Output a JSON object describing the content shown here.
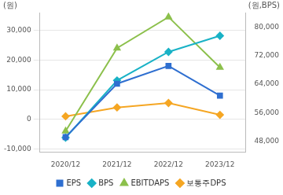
{
  "chart_data": {
    "type": "line",
    "y_label": "(원)",
    "y2_label": "(원,BPS)",
    "categories": [
      "2020/12",
      "2021/12",
      "2022/12",
      "2023/12"
    ],
    "series": [
      {
        "name": "EPS",
        "color": "#2f6fd0",
        "marker": "square",
        "values": [
          -6000,
          12000,
          18000,
          8000
        ]
      },
      {
        "name": "BPS",
        "color": "#19b2c6",
        "marker": "diamond",
        "axis": "y2",
        "values": [
          49000,
          65000,
          73000,
          77500
        ]
      },
      {
        "name": "EBITDAPS",
        "color": "#8cc04c",
        "marker": "triangle",
        "values": [
          -4000,
          24000,
          34500,
          17500
        ]
      },
      {
        "name": "보통주DPS",
        "color": "#f5a623",
        "marker": "diamond",
        "values": [
          1000,
          4000,
          5500,
          1500
        ]
      }
    ],
    "ylim": [
      -11000,
      36000
    ],
    "yticks": [
      {
        "value": -10000,
        "label": "-10,000"
      },
      0,
      {
        "value": 10000,
        "label": "10,000"
      },
      {
        "value": 20000,
        "label": "20,000"
      },
      {
        "value": 30000,
        "label": "30,000"
      }
    ],
    "y2lim": [
      45000,
      84000
    ],
    "y2ticks": [
      {
        "value": 48000,
        "label": "48,000"
      },
      {
        "value": 56000,
        "label": "56,000"
      },
      {
        "value": 64000,
        "label": "64,000"
      },
      {
        "value": 72000,
        "label": "72,000"
      },
      {
        "value": 80000,
        "label": "80,000"
      }
    ],
    "grid": true,
    "legend": "bottom"
  }
}
